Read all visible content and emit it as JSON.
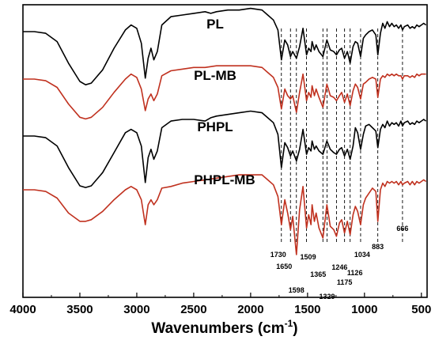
{
  "chart_data": {
    "type": "line",
    "title": "",
    "xlabel": "Wavenumbers (cm",
    "xlabel_sup": "-1",
    "xlabel_end": ")",
    "ylabel": "",
    "xlim": [
      4000,
      450
    ],
    "x_reversed": true,
    "x_ticks": [
      4000,
      3500,
      3000,
      2500,
      2000,
      1500,
      1000,
      500
    ],
    "y_ticks_shown": false,
    "grid": false,
    "legend": "none",
    "line_colors": {
      "black": "#000000",
      "red": "#c0311f"
    },
    "series": [
      {
        "name": "PL",
        "color": "#000000",
        "x": [
          4000,
          3900,
          3800,
          3700,
          3600,
          3500,
          3450,
          3400,
          3300,
          3200,
          3100,
          3050,
          3000,
          2960,
          2925,
          2900,
          2875,
          2850,
          2820,
          2780,
          2700,
          2600,
          2500,
          2400,
          2350,
          2300,
          2200,
          2100,
          2000,
          1900,
          1850,
          1800,
          1760,
          1730,
          1700,
          1675,
          1650,
          1630,
          1598,
          1570,
          1540,
          1509,
          1490,
          1470,
          1460,
          1440,
          1425,
          1400,
          1365,
          1330,
          1300,
          1270,
          1246,
          1220,
          1200,
          1175,
          1150,
          1126,
          1100,
          1080,
          1060,
          1034,
          1010,
          990,
          960,
          930,
          900,
          883,
          860,
          840,
          820,
          800,
          780,
          760,
          740,
          720,
          700,
          680,
          666,
          650,
          620,
          600,
          580,
          560,
          540,
          520,
          500,
          480,
          460
        ],
        "y": [
          0.0,
          0.0,
          -0.1,
          -0.6,
          -1.9,
          -3.0,
          -3.2,
          -3.1,
          -2.3,
          -1.0,
          0.1,
          0.4,
          0.2,
          -0.7,
          -2.8,
          -1.6,
          -1.0,
          -1.7,
          -1.2,
          0.4,
          0.9,
          1.0,
          1.1,
          1.2,
          1.1,
          1.2,
          1.3,
          1.3,
          1.4,
          1.3,
          1.0,
          0.7,
          0.1,
          -1.7,
          -0.5,
          -0.8,
          -1.5,
          -1.2,
          -1.6,
          -0.9,
          0.2,
          -1.4,
          -1.0,
          -1.2,
          -0.6,
          -1.1,
          -0.8,
          -1.2,
          -1.5,
          -0.5,
          -1.1,
          -1.2,
          -1.4,
          -1.1,
          -1.0,
          -1.6,
          -1.2,
          -1.9,
          -0.9,
          -0.6,
          -0.7,
          -1.5,
          -0.4,
          -0.2,
          0.0,
          0.1,
          -0.2,
          -1.4,
          -0.1,
          0.5,
          0.2,
          0.6,
          0.3,
          0.5,
          0.3,
          0.4,
          0.2,
          0.4,
          0.1,
          0.3,
          0.4,
          0.2,
          0.3,
          0.2,
          0.4,
          0.3,
          0.4,
          0.5,
          0.4
        ]
      },
      {
        "name": "PL-MB",
        "color": "#c0311f",
        "x": [
          4000,
          3900,
          3800,
          3700,
          3600,
          3500,
          3450,
          3400,
          3300,
          3200,
          3100,
          3050,
          3000,
          2960,
          2925,
          2900,
          2875,
          2850,
          2820,
          2780,
          2700,
          2600,
          2500,
          2400,
          2300,
          2200,
          2100,
          2000,
          1900,
          1850,
          1800,
          1760,
          1730,
          1700,
          1675,
          1650,
          1630,
          1598,
          1570,
          1540,
          1509,
          1490,
          1470,
          1460,
          1440,
          1425,
          1400,
          1365,
          1330,
          1300,
          1270,
          1246,
          1220,
          1200,
          1175,
          1150,
          1126,
          1100,
          1080,
          1060,
          1034,
          1010,
          990,
          960,
          930,
          900,
          883,
          860,
          840,
          820,
          800,
          780,
          760,
          740,
          720,
          700,
          680,
          666,
          650,
          620,
          600,
          580,
          560,
          540,
          520,
          500,
          480,
          460
        ],
        "y": [
          0.0,
          0.0,
          -0.1,
          -0.5,
          -1.5,
          -2.3,
          -2.4,
          -2.3,
          -1.7,
          -0.8,
          0.0,
          0.3,
          0.1,
          -0.6,
          -1.9,
          -1.2,
          -0.9,
          -1.3,
          -0.9,
          0.2,
          0.5,
          0.6,
          0.7,
          0.7,
          0.8,
          0.8,
          0.8,
          0.8,
          0.7,
          0.4,
          0.1,
          -0.5,
          -1.8,
          -0.6,
          -1.0,
          -1.2,
          -1.0,
          -2.0,
          -0.8,
          0.3,
          -1.3,
          -0.8,
          -1.1,
          -0.4,
          -1.0,
          -0.6,
          -1.1,
          -1.7,
          -0.3,
          -1.0,
          -1.1,
          -1.3,
          -1.0,
          -0.8,
          -1.4,
          -0.9,
          -1.6,
          -0.7,
          -0.3,
          -0.5,
          -1.2,
          -0.3,
          -0.2,
          0.0,
          0.1,
          0.0,
          -1.1,
          0.0,
          0.2,
          0.1,
          0.3,
          0.2,
          0.3,
          0.2,
          0.3,
          0.2,
          0.2,
          0.0,
          0.2,
          0.2,
          0.1,
          0.2,
          0.1,
          0.3,
          0.2,
          0.3,
          0.3,
          0.3
        ]
      },
      {
        "name": "PHPL",
        "color": "#000000",
        "x": [
          4000,
          3900,
          3800,
          3700,
          3600,
          3500,
          3450,
          3400,
          3300,
          3200,
          3100,
          3050,
          3000,
          2960,
          2925,
          2900,
          2875,
          2850,
          2820,
          2780,
          2700,
          2600,
          2500,
          2400,
          2350,
          2300,
          2200,
          2100,
          2000,
          1900,
          1850,
          1800,
          1760,
          1730,
          1700,
          1675,
          1650,
          1630,
          1598,
          1570,
          1540,
          1509,
          1490,
          1470,
          1460,
          1440,
          1425,
          1400,
          1365,
          1330,
          1300,
          1270,
          1246,
          1220,
          1200,
          1175,
          1150,
          1126,
          1100,
          1080,
          1060,
          1034,
          1010,
          990,
          960,
          930,
          900,
          883,
          860,
          840,
          820,
          800,
          780,
          760,
          740,
          720,
          700,
          680,
          666,
          650,
          620,
          600,
          580,
          560,
          540,
          520,
          500,
          480,
          460
        ],
        "y": [
          0.0,
          0.0,
          -0.1,
          -0.6,
          -1.9,
          -3.0,
          -3.1,
          -3.0,
          -2.2,
          -1.0,
          0.2,
          0.4,
          0.2,
          -0.6,
          -2.8,
          -1.3,
          -0.8,
          -1.4,
          -0.9,
          0.5,
          0.9,
          1.0,
          1.0,
          0.9,
          1.1,
          1.2,
          1.3,
          1.4,
          1.5,
          1.4,
          1.1,
          0.8,
          0.1,
          -1.9,
          -0.4,
          -0.7,
          -1.2,
          -0.9,
          -1.5,
          -0.8,
          0.4,
          -1.1,
          -0.7,
          -0.9,
          -0.3,
          -0.8,
          -0.6,
          -0.9,
          -1.1,
          -0.3,
          -0.8,
          -1.0,
          -1.1,
          -0.8,
          -0.7,
          -1.2,
          -0.8,
          -1.4,
          -0.6,
          0.5,
          0.2,
          -0.8,
          0.1,
          0.6,
          0.7,
          0.5,
          0.3,
          -0.7,
          0.4,
          0.7,
          0.5,
          0.9,
          0.6,
          0.8,
          0.7,
          0.8,
          0.6,
          0.9,
          0.6,
          0.8,
          0.9,
          0.7,
          0.8,
          0.7,
          0.9,
          0.8,
          0.9,
          1.0,
          0.9
        ]
      },
      {
        "name": "PHPL-MB",
        "color": "#c0311f",
        "x": [
          4000,
          3900,
          3800,
          3700,
          3600,
          3500,
          3450,
          3400,
          3300,
          3200,
          3100,
          3050,
          3000,
          2960,
          2925,
          2900,
          2875,
          2850,
          2820,
          2780,
          2700,
          2600,
          2500,
          2400,
          2300,
          2200,
          2100,
          2000,
          1900,
          1850,
          1800,
          1760,
          1730,
          1700,
          1675,
          1650,
          1630,
          1598,
          1570,
          1540,
          1509,
          1490,
          1470,
          1460,
          1440,
          1425,
          1400,
          1365,
          1330,
          1300,
          1270,
          1246,
          1220,
          1200,
          1175,
          1150,
          1126,
          1100,
          1080,
          1060,
          1034,
          1010,
          990,
          960,
          930,
          900,
          883,
          860,
          840,
          820,
          800,
          780,
          760,
          740,
          720,
          700,
          680,
          666,
          650,
          620,
          600,
          580,
          560,
          540,
          520,
          500,
          480,
          460
        ],
        "y": [
          0.0,
          0.0,
          -0.1,
          -0.5,
          -1.4,
          -1.9,
          -1.9,
          -1.8,
          -1.3,
          -0.6,
          0.0,
          0.2,
          0.0,
          -0.6,
          -2.1,
          -0.9,
          -0.6,
          -0.9,
          -0.6,
          0.1,
          0.2,
          0.4,
          0.5,
          0.6,
          0.7,
          0.8,
          0.9,
          0.9,
          0.9,
          0.6,
          0.3,
          -0.4,
          -2.1,
          -0.6,
          -1.4,
          -2.4,
          -1.6,
          -3.9,
          -1.2,
          0.2,
          -2.3,
          -1.5,
          -2.1,
          -0.9,
          -1.9,
          -1.4,
          -2.3,
          -2.9,
          -0.9,
          -2.2,
          -2.4,
          -2.8,
          -2.0,
          -1.8,
          -2.6,
          -1.9,
          -2.7,
          -1.5,
          -1.0,
          -1.3,
          -2.1,
          -0.9,
          -0.5,
          -0.2,
          0.1,
          -0.1,
          -1.9,
          0.0,
          0.4,
          0.2,
          0.5,
          0.4,
          0.5,
          0.4,
          0.5,
          0.3,
          0.5,
          0.3,
          0.4,
          0.5,
          0.3,
          0.5,
          0.3,
          0.5,
          0.4,
          0.5,
          0.6,
          0.5
        ]
      }
    ],
    "reference_lines": [
      1730,
      1650,
      1598,
      1509,
      1365,
      1329,
      1246,
      1175,
      1126,
      1034,
      883,
      666
    ],
    "annotations": [
      {
        "text": "1730",
        "x": 1730
      },
      {
        "text": "1650",
        "x": 1650
      },
      {
        "text": "1509",
        "x": 1509
      },
      {
        "text": "1598",
        "x": 1598
      },
      {
        "text": "1365",
        "x": 1365
      },
      {
        "text": "1329",
        "x": 1329
      },
      {
        "text": "1246",
        "x": 1246
      },
      {
        "text": "1175",
        "x": 1175
      },
      {
        "text": "1126",
        "x": 1126
      },
      {
        "text": "1034",
        "x": 1034
      },
      {
        "text": "883",
        "x": 883
      },
      {
        "text": "666",
        "x": 666
      }
    ]
  }
}
